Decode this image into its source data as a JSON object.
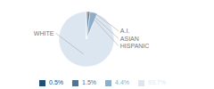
{
  "chart_data": {
    "type": "pie",
    "categories": [
      "WHITE",
      "A.I.",
      "ASIAN",
      "HISPANIC"
    ],
    "values": [
      93.7,
      4.4,
      1.5,
      0.5
    ],
    "value_labels": [
      "93.7%",
      "4.4%",
      "1.5%",
      "0.5%"
    ],
    "colors": [
      "#dce6f1",
      "#8daec8",
      "#4f7295",
      "#1f4e79"
    ],
    "legend": "bottom"
  }
}
